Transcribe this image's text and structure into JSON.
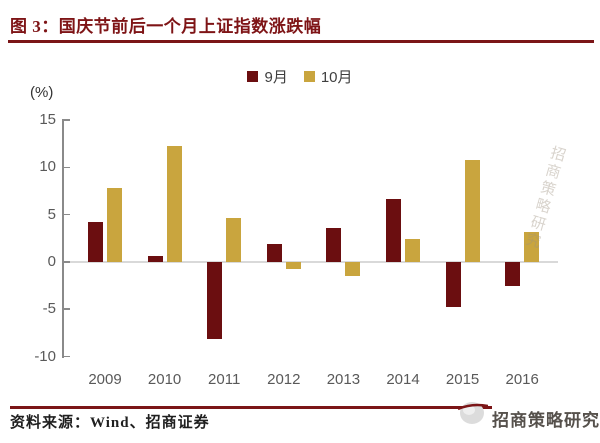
{
  "figure": {
    "title": "图 3：国庆节前后一个月上证指数涨跌幅",
    "unit_label": "(%)"
  },
  "footer": {
    "source": "资料来源：Wind、招商证券",
    "brand": "招商策略研究"
  },
  "watermark": "招商策略研究",
  "colors": {
    "accent": "#7B1517",
    "september": "#6B0E10",
    "october": "#C9A53E",
    "axis": "#8a8a8a",
    "tick_label": "#595959",
    "zero_line": "#d9d9d9"
  },
  "chart_data": {
    "type": "bar",
    "title": "图 3：国庆节前后一个月上证指数涨跌幅",
    "xlabel": "",
    "ylabel": "(%)",
    "categories": [
      "2009",
      "2010",
      "2011",
      "2012",
      "2013",
      "2014",
      "2015",
      "2016"
    ],
    "series": [
      {
        "name": "9月",
        "color": "#6B0E10",
        "values": [
          4.2,
          0.6,
          -8.1,
          1.9,
          3.6,
          6.6,
          -4.8,
          -2.6
        ]
      },
      {
        "name": "10月",
        "color": "#C9A53E",
        "values": [
          7.8,
          12.2,
          4.6,
          -0.8,
          -1.5,
          2.4,
          10.8,
          3.2
        ]
      }
    ],
    "ylim": [
      -10,
      15
    ],
    "yticks": [
      15,
      10,
      5,
      0,
      -5,
      -10
    ],
    "legend_position": "top-center",
    "grid": false
  }
}
